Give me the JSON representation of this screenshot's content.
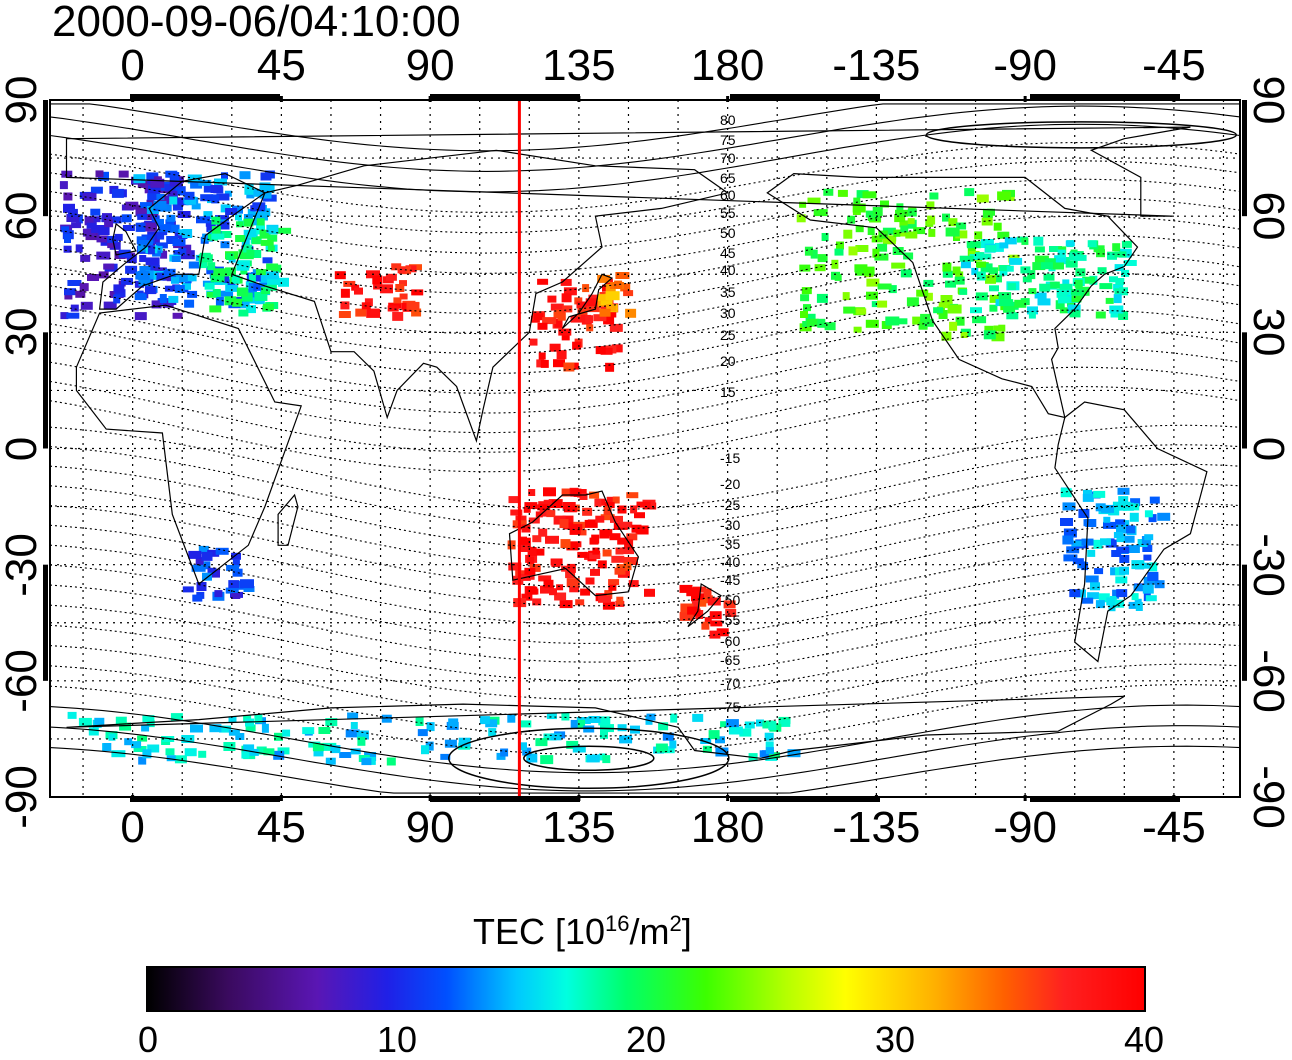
{
  "title": "2000-09-06/04:10:00",
  "x_ticks_top": [
    "0",
    "45",
    "90",
    "135",
    "180",
    "-135",
    "-90",
    "-45"
  ],
  "x_ticks_bottom": [
    "0",
    "45",
    "90",
    "135",
    "180",
    "-135",
    "-90",
    "-45"
  ],
  "y_ticks_left": [
    "90",
    "60",
    "30",
    "0",
    "-30",
    "-60",
    "-90"
  ],
  "y_ticks_right": [
    "90",
    "60",
    "30",
    "0",
    "-30",
    "-60",
    "-90"
  ],
  "contour_labels": [
    "80",
    "75",
    "70",
    "65",
    "60",
    "55",
    "50",
    "45",
    "40",
    "35",
    "30",
    "25",
    "20",
    "15",
    "-15",
    "-20",
    "-25",
    "-30",
    "-35",
    "-40",
    "-45",
    "-50",
    "-55",
    "-60",
    "-65",
    "-70",
    "-75"
  ],
  "colorbar": {
    "label": "TEC  [10",
    "label_exp": "16",
    "label_unit": "/m",
    "label_unit_exp": "2",
    "label_end": "]",
    "ticks": [
      "0",
      "10",
      "20",
      "30",
      "40"
    ],
    "range": [
      0,
      40
    ]
  },
  "chart_data": {
    "type": "heatmap",
    "title": "2000-09-06/04:10:00",
    "xlabel": "",
    "ylabel": "",
    "x_ticks": [
      0,
      45,
      90,
      135,
      180,
      -135,
      -90,
      -45
    ],
    "y_ticks": [
      90,
      60,
      30,
      0,
      -30,
      -60,
      -90
    ],
    "xlim": [
      -25,
      335
    ],
    "ylim": [
      -90,
      90
    ],
    "meridian_marker_lon": 117,
    "value_range": [
      0,
      40
    ],
    "grid": true,
    "colors": {
      "marker": "#ff0000",
      "low": "#000000",
      "high": "#ff0000"
    },
    "regions": [
      {
        "lon": [
          -22,
          15
        ],
        "lat": [
          35,
          72
        ],
        "tec": 9
      },
      {
        "lon": [
          0,
          40
        ],
        "lat": [
          38,
          72
        ],
        "tec": 13
      },
      {
        "lon": [
          20,
          45
        ],
        "lat": [
          35,
          60
        ],
        "tec": 18
      },
      {
        "lon": [
          15,
          35
        ],
        "lat": [
          -38,
          -25
        ],
        "tec": 11
      },
      {
        "lon": [
          60,
          85
        ],
        "lat": [
          35,
          48
        ],
        "tec": 38
      },
      {
        "lon": [
          120,
          145
        ],
        "lat": [
          22,
          44
        ],
        "tec": 38
      },
      {
        "lon": [
          140,
          150
        ],
        "lat": [
          35,
          48
        ],
        "tec": 33
      },
      {
        "lon": [
          200,
          265
        ],
        "lat": [
          30,
          68
        ],
        "tec": 22
      },
      {
        "lon": [
          250,
          300
        ],
        "lat": [
          35,
          55
        ],
        "tec": 18
      },
      {
        "lon": [
          280,
          310
        ],
        "lat": [
          -40,
          -10
        ],
        "tec": 14
      },
      {
        "lon": [
          113,
          155
        ],
        "lat": [
          -40,
          -10
        ],
        "tec": 38
      },
      {
        "lon": [
          165,
          180
        ],
        "lat": [
          -48,
          -35
        ],
        "tec": 38
      },
      {
        "lon": [
          -20,
          200
        ],
        "lat": [
          -80,
          -68
        ],
        "tec": 16
      }
    ]
  }
}
